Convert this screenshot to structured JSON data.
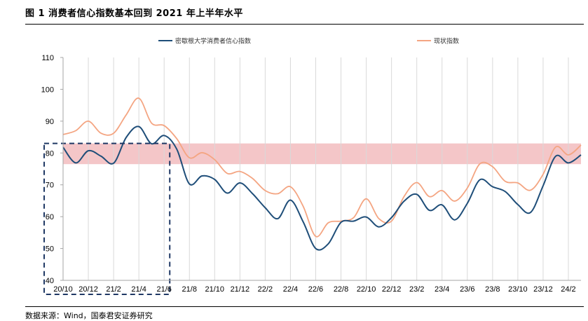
{
  "figure": {
    "title": "图 1 消费者信心指数基本回到 2021 年上半年水平",
    "source": "数据来源：Wind，国泰君安证券研究"
  },
  "chart_data": {
    "type": "line",
    "title": "",
    "xlabel": "",
    "ylabel": "",
    "ylim": [
      40,
      110
    ],
    "yticks": [
      40,
      50,
      60,
      70,
      80,
      90,
      100,
      110
    ],
    "xticks": [
      "20/10",
      "20/12",
      "21/2",
      "21/4",
      "21/6",
      "21/8",
      "21/10",
      "21/12",
      "22/2",
      "22/4",
      "22/6",
      "22/8",
      "22/10",
      "22/12",
      "23/2",
      "23/4",
      "23/6",
      "23/8",
      "23/10",
      "23/12",
      "24/2"
    ],
    "grid": "vertical",
    "legend_position": "top",
    "band": {
      "from": 76.5,
      "to": 83,
      "color": "#f4c6c8"
    },
    "highlight_box": {
      "x_from": "20/10",
      "x_to": "21/7",
      "y_from": 40,
      "y_to": 83,
      "color": "#1f3864"
    },
    "series": [
      {
        "name": "密歇根大学消费者信心指数",
        "color": "#1f4e79",
        "values": [
          81.8,
          76.9,
          80.7,
          79.0,
          76.8,
          84.9,
          88.3,
          82.9,
          85.5,
          81.2,
          70.3,
          72.8,
          71.7,
          67.4,
          70.6,
          67.2,
          62.8,
          59.4,
          65.2,
          58.4,
          50.0,
          51.5,
          58.2,
          58.6,
          59.9,
          56.8,
          59.7,
          64.9,
          67.0,
          62.0,
          63.7,
          59.0,
          64.2,
          71.6,
          69.4,
          67.9,
          63.8,
          61.3,
          69.7,
          79.0,
          76.9,
          79.4
        ]
      },
      {
        "name": "现状指数",
        "color": "#f4a582",
        "values": [
          85.8,
          87.0,
          90.0,
          86.2,
          86.2,
          92.0,
          97.2,
          89.4,
          88.6,
          84.5,
          78.5,
          80.1,
          77.9,
          73.6,
          74.2,
          72.0,
          68.2,
          67.2,
          69.4,
          63.3,
          53.8,
          58.1,
          58.6,
          59.7,
          65.6,
          59.4,
          58.6,
          66.4,
          70.7,
          66.3,
          68.2,
          64.9,
          69.0,
          76.6,
          75.7,
          71.1,
          70.6,
          68.3,
          73.3,
          81.9,
          79.4,
          82.5
        ]
      }
    ]
  }
}
